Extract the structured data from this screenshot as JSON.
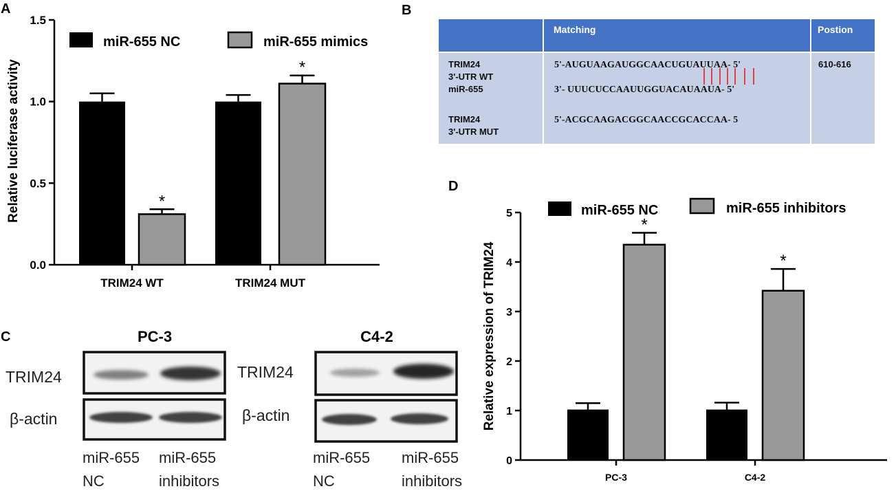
{
  "chart_data": [
    {
      "panel": "A",
      "type": "bar",
      "ylabel": "Relative luciferase activity",
      "ylim": [
        0,
        1.5
      ],
      "yticks": [
        "0.0",
        "0.5",
        "1.0",
        "1.5"
      ],
      "categories": [
        "TRIM24 WT",
        "TRIM24 MUT"
      ],
      "series": [
        {
          "name": "miR-655 NC",
          "values": [
            1.0,
            1.0
          ],
          "errors": [
            0.05,
            0.04
          ],
          "color": "#000000"
        },
        {
          "name": "miR-655 mimics",
          "values": [
            0.31,
            1.11
          ],
          "errors": [
            0.03,
            0.05
          ],
          "color": "#999999"
        }
      ],
      "significance": [
        [
          false,
          false
        ],
        [
          true,
          true
        ]
      ],
      "legend": "top"
    },
    {
      "panel": "D",
      "type": "bar",
      "ylabel": "Relative expression of TRIM24",
      "ylim": [
        0,
        5
      ],
      "yticks": [
        "0",
        "1",
        "2",
        "3",
        "4",
        "5"
      ],
      "categories": [
        "PC-3",
        "C4-2"
      ],
      "series": [
        {
          "name": "miR-655 NC",
          "values": [
            1.02,
            1.02
          ],
          "errors": [
            0.13,
            0.14
          ],
          "color": "#000000"
        },
        {
          "name": "miR-655 inhibitors",
          "values": [
            4.35,
            3.42
          ],
          "errors": [
            0.24,
            0.44
          ],
          "color": "#999999"
        }
      ],
      "significance": [
        [
          false,
          false
        ],
        [
          true,
          true
        ]
      ],
      "legend": "top"
    }
  ],
  "panel_letters": {
    "a": "A",
    "b": "B",
    "c": "C",
    "d": "D"
  },
  "star": "*",
  "table_b": {
    "headers": [
      "",
      "Matching",
      "Postion"
    ],
    "rows": [
      {
        "label": [
          "TRIM24",
          "3'-UTR WT"
        ],
        "seq": "5'-AUGUAAGAUGGCAACUGUAUUAA- 5'",
        "pos": "610-616"
      },
      {
        "label": [
          "miR-655"
        ],
        "seq": "3'- UUUCUCCAAUUGGUACAUAAUA- 5'"
      },
      {
        "label": [
          "TRIM24",
          "3'-UTR MUT"
        ],
        "seq": "5'-ACGCAAGACGGCAACCGCACCAA- 5"
      }
    ],
    "header_color": "#4472c4",
    "body_color": "#c5d0e6",
    "match_line_color": "#e02020"
  },
  "blots": {
    "pc3": {
      "title": "PC-3",
      "row1": "TRIM24",
      "row2": "β-actin",
      "lane1": [
        "miR-655",
        "NC"
      ],
      "lane2": [
        "miR-655",
        "inhibitors"
      ]
    },
    "c42": {
      "title": "C4-2",
      "row1": "TRIM24",
      "row2": "β-actin",
      "lane1": [
        "miR-655",
        "NC"
      ],
      "lane2": [
        "miR-655",
        "inhibitors"
      ]
    }
  }
}
